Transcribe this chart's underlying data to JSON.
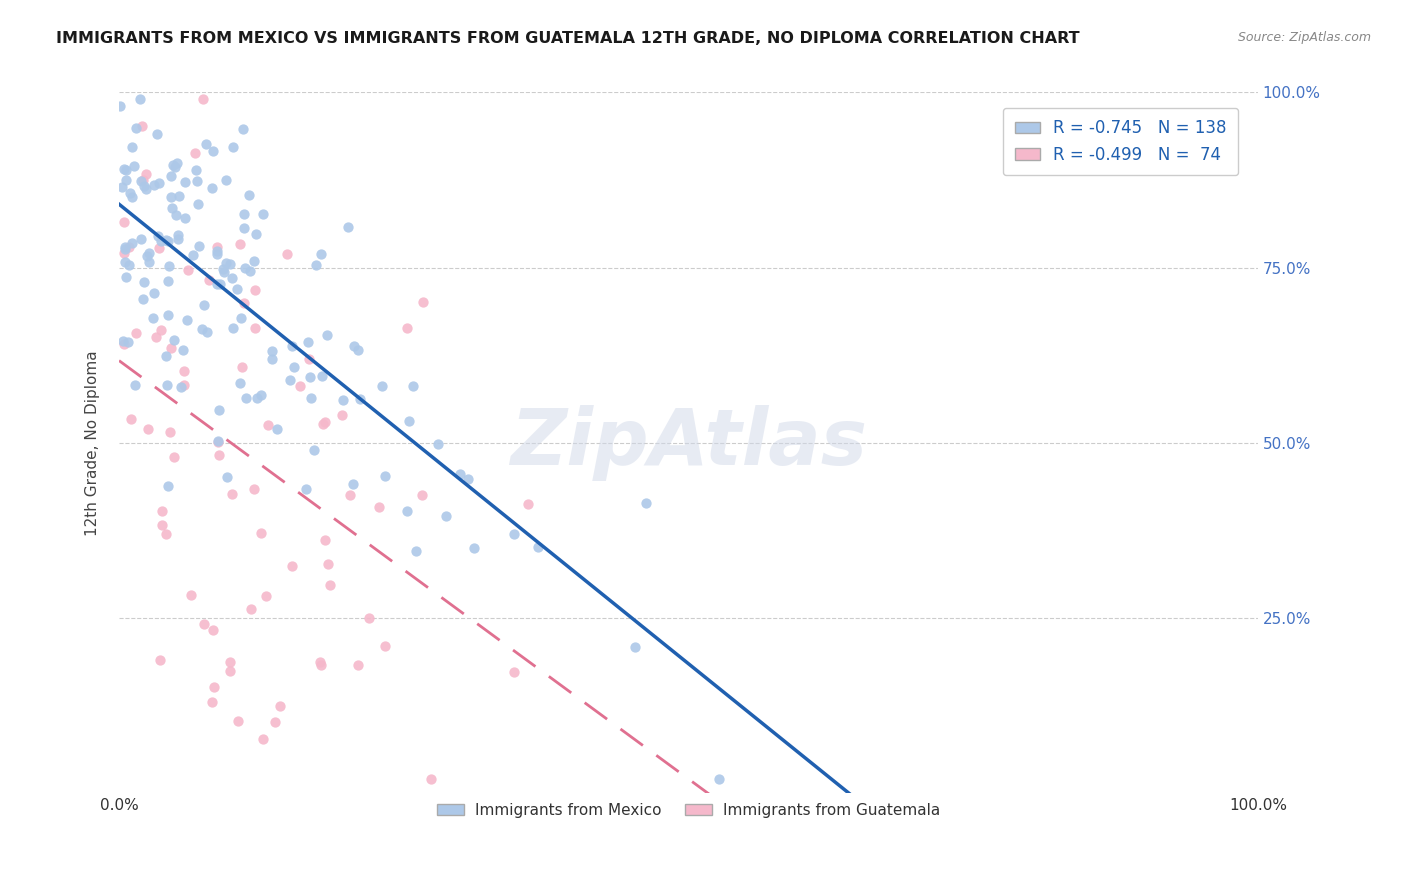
{
  "title": "IMMIGRANTS FROM MEXICO VS IMMIGRANTS FROM GUATEMALA 12TH GRADE, NO DIPLOMA CORRELATION CHART",
  "source": "Source: ZipAtlas.com",
  "ylabel": "12th Grade, No Diploma",
  "mexico_R": "-0.745",
  "mexico_N": "138",
  "guatemala_R": "-0.499",
  "guatemala_N": "74",
  "mexico_color": "#adc8e8",
  "mexico_line_color": "#2060b0",
  "guatemala_color": "#f5b8cb",
  "guatemala_line_color": "#e07090",
  "watermark": "ZipAtlas"
}
